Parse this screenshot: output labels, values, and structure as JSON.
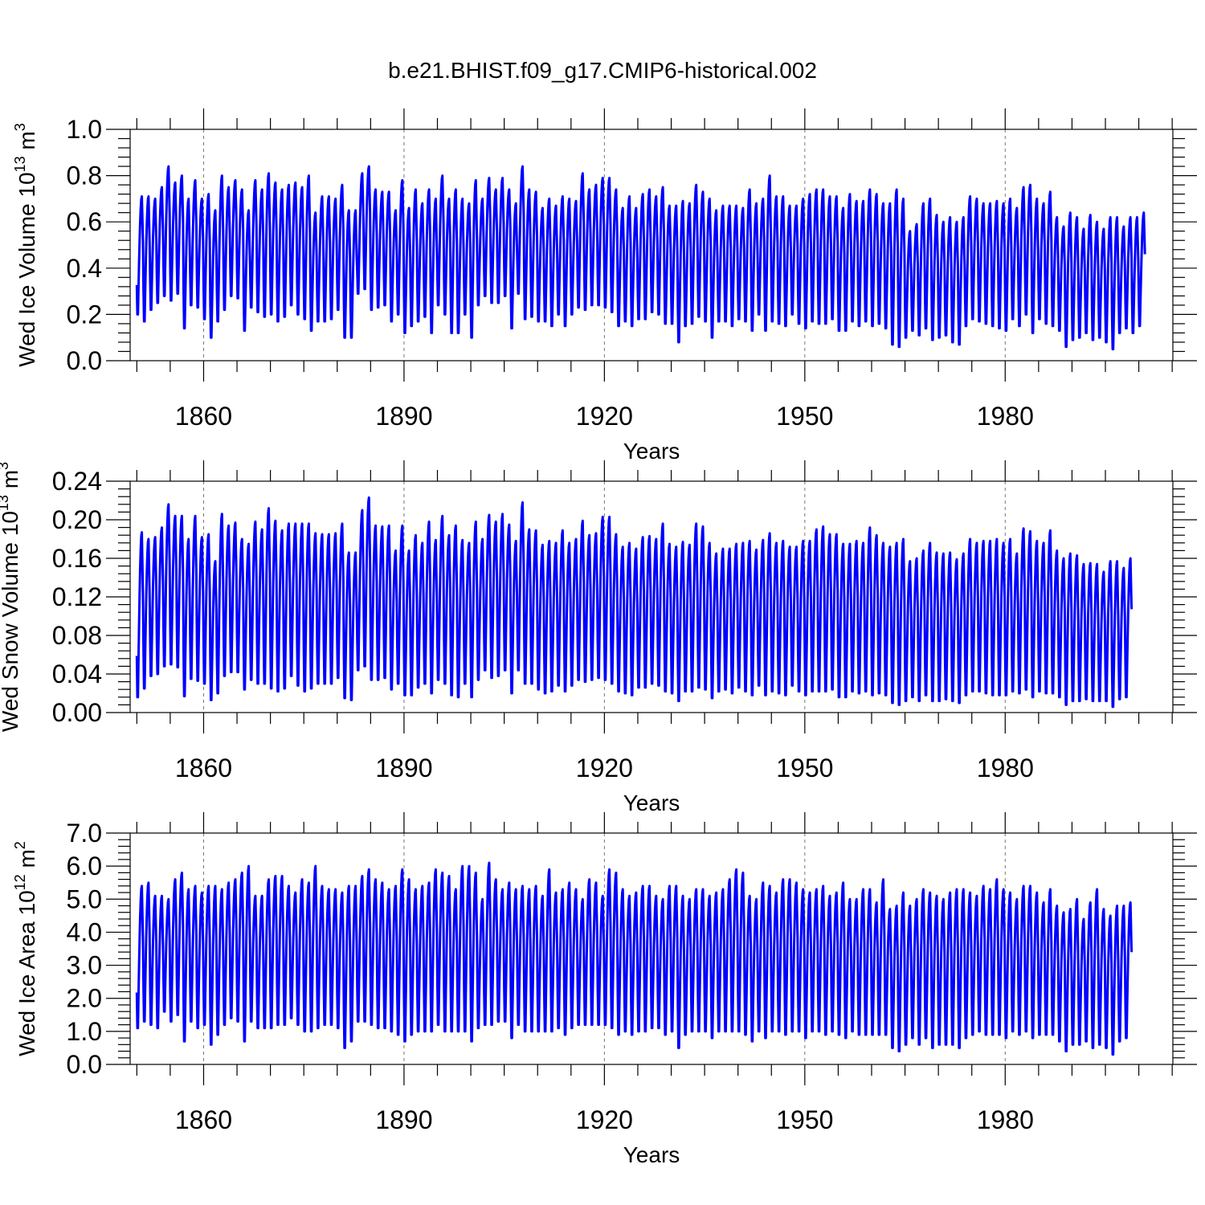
{
  "figure_title": "b.e21.BHIST.f09_g17.CMIP6-historical.002",
  "colors": {
    "series": "#0000ff",
    "axes": "#000000",
    "gridline": "#777777"
  },
  "chart_data": [
    {
      "type": "line",
      "ylabel_main": "Wed Ice Volume 10",
      "ylabel_exp": "13",
      "ylabel_unit": " m",
      "ylabel_unit_exp": "3",
      "xlabel": "Years",
      "xlim": [
        1849,
        2005.1
      ],
      "ylim": [
        0.0,
        1.0
      ],
      "x_ticks": [
        1860,
        1890,
        1920,
        1950,
        1980
      ],
      "x_tick_labels": [
        "1860",
        "1890",
        "1920",
        "1950",
        "1980"
      ],
      "y_ticks": [
        0.0,
        0.2,
        0.4,
        0.6,
        0.8,
        1.0
      ],
      "y_tick_labels": [
        "0.0",
        "0.2",
        "0.4",
        "0.6",
        "0.8",
        "1.0"
      ],
      "series": [
        {
          "color": "#0000ff",
          "x_start": 1850.0,
          "seasonal": true,
          "annual_max": [
            0.71,
            0.71,
            0.7,
            0.75,
            0.84,
            0.77,
            0.8,
            0.7,
            0.78,
            0.7,
            0.72,
            0.65,
            0.8,
            0.75,
            0.78,
            0.74,
            0.65,
            0.78,
            0.74,
            0.81,
            0.77,
            0.74,
            0.76,
            0.77,
            0.75,
            0.8,
            0.64,
            0.71,
            0.71,
            0.7,
            0.76,
            0.65,
            0.65,
            0.81,
            0.84,
            0.74,
            0.73,
            0.73,
            0.65,
            0.78,
            0.66,
            0.74,
            0.68,
            0.74,
            0.7,
            0.8,
            0.7,
            0.74,
            0.7,
            0.68,
            0.78,
            0.7,
            0.79,
            0.74,
            0.79,
            0.74,
            0.68,
            0.84,
            0.74,
            0.73,
            0.66,
            0.7,
            0.67,
            0.71,
            0.7,
            0.69,
            0.81,
            0.74,
            0.76,
            0.79,
            0.79,
            0.74,
            0.66,
            0.71,
            0.66,
            0.72,
            0.74,
            0.71,
            0.75,
            0.67,
            0.67,
            0.69,
            0.68,
            0.76,
            0.73,
            0.7,
            0.65,
            0.67,
            0.67,
            0.67,
            0.66,
            0.74,
            0.68,
            0.7,
            0.8,
            0.71,
            0.71,
            0.67,
            0.67,
            0.7,
            0.72,
            0.74,
            0.74,
            0.71,
            0.71,
            0.66,
            0.72,
            0.69,
            0.69,
            0.74,
            0.72,
            0.68,
            0.68,
            0.74,
            0.7,
            0.56,
            0.59,
            0.68,
            0.7,
            0.63,
            0.6,
            0.62,
            0.6,
            0.62,
            0.71,
            0.7,
            0.68,
            0.68,
            0.69,
            0.68,
            0.7,
            0.66,
            0.75,
            0.76,
            0.7,
            0.68,
            0.73,
            0.62,
            0.58,
            0.64,
            0.62,
            0.57,
            0.63,
            0.6,
            0.57,
            0.62,
            0.62,
            0.58,
            0.62,
            0.62,
            0.64
          ],
          "annual_min": [
            0.2,
            0.17,
            0.22,
            0.25,
            0.28,
            0.26,
            0.29,
            0.14,
            0.24,
            0.23,
            0.18,
            0.1,
            0.17,
            0.22,
            0.28,
            0.27,
            0.13,
            0.23,
            0.21,
            0.19,
            0.2,
            0.17,
            0.19,
            0.24,
            0.2,
            0.18,
            0.13,
            0.17,
            0.17,
            0.18,
            0.22,
            0.1,
            0.1,
            0.29,
            0.31,
            0.22,
            0.23,
            0.24,
            0.17,
            0.2,
            0.12,
            0.15,
            0.17,
            0.19,
            0.12,
            0.24,
            0.2,
            0.12,
            0.12,
            0.2,
            0.1,
            0.24,
            0.28,
            0.25,
            0.25,
            0.28,
            0.14,
            0.29,
            0.18,
            0.19,
            0.17,
            0.17,
            0.15,
            0.2,
            0.15,
            0.2,
            0.23,
            0.22,
            0.24,
            0.24,
            0.23,
            0.21,
            0.15,
            0.17,
            0.15,
            0.18,
            0.18,
            0.21,
            0.2,
            0.16,
            0.16,
            0.08,
            0.15,
            0.16,
            0.19,
            0.17,
            0.1,
            0.17,
            0.17,
            0.15,
            0.18,
            0.17,
            0.13,
            0.2,
            0.13,
            0.17,
            0.16,
            0.15,
            0.2,
            0.16,
            0.14,
            0.17,
            0.16,
            0.16,
            0.18,
            0.13,
            0.13,
            0.17,
            0.15,
            0.17,
            0.15,
            0.16,
            0.14,
            0.07,
            0.06,
            0.1,
            0.13,
            0.11,
            0.14,
            0.09,
            0.1,
            0.11,
            0.08,
            0.07,
            0.15,
            0.18,
            0.17,
            0.16,
            0.15,
            0.14,
            0.13,
            0.18,
            0.15,
            0.2,
            0.12,
            0.18,
            0.16,
            0.15,
            0.13,
            0.06,
            0.09,
            0.1,
            0.12,
            0.09,
            0.1,
            0.08,
            0.05,
            0.12,
            0.14,
            0.12,
            0.15
          ]
        }
      ]
    },
    {
      "type": "line",
      "ylabel_main": "Wed Snow Volume 10",
      "ylabel_exp": "13",
      "ylabel_unit": " m",
      "ylabel_unit_exp": "3",
      "xlabel": "Years",
      "xlim": [
        1849,
        2005.1
      ],
      "ylim": [
        0.0,
        0.24
      ],
      "x_ticks": [
        1860,
        1890,
        1920,
        1950,
        1980
      ],
      "x_tick_labels": [
        "1860",
        "1890",
        "1920",
        "1950",
        "1980"
      ],
      "y_ticks": [
        0.0,
        0.04,
        0.08,
        0.12,
        0.16,
        0.2,
        0.24
      ],
      "y_tick_labels": [
        "0.00",
        "0.04",
        "0.08",
        "0.12",
        "0.16",
        "0.20",
        "0.24"
      ],
      "series": [
        {
          "color": "#0000ff",
          "x_start": 1850.0,
          "seasonal": true,
          "annual_max": [
            0.187,
            0.18,
            0.182,
            0.192,
            0.216,
            0.204,
            0.204,
            0.18,
            0.204,
            0.182,
            0.185,
            0.157,
            0.206,
            0.194,
            0.197,
            0.18,
            0.175,
            0.198,
            0.19,
            0.212,
            0.199,
            0.189,
            0.196,
            0.196,
            0.196,
            0.196,
            0.186,
            0.185,
            0.185,
            0.186,
            0.196,
            0.166,
            0.166,
            0.21,
            0.223,
            0.194,
            0.193,
            0.194,
            0.168,
            0.194,
            0.168,
            0.184,
            0.176,
            0.198,
            0.179,
            0.204,
            0.184,
            0.194,
            0.179,
            0.176,
            0.198,
            0.18,
            0.205,
            0.198,
            0.206,
            0.195,
            0.178,
            0.218,
            0.19,
            0.189,
            0.174,
            0.178,
            0.176,
            0.189,
            0.176,
            0.18,
            0.199,
            0.184,
            0.186,
            0.203,
            0.203,
            0.185,
            0.172,
            0.176,
            0.17,
            0.182,
            0.183,
            0.18,
            0.196,
            0.175,
            0.172,
            0.177,
            0.174,
            0.196,
            0.193,
            0.176,
            0.165,
            0.17,
            0.17,
            0.175,
            0.176,
            0.178,
            0.169,
            0.179,
            0.186,
            0.176,
            0.178,
            0.172,
            0.172,
            0.178,
            0.178,
            0.19,
            0.193,
            0.185,
            0.185,
            0.175,
            0.175,
            0.178,
            0.176,
            0.192,
            0.184,
            0.176,
            0.172,
            0.176,
            0.18,
            0.157,
            0.16,
            0.168,
            0.176,
            0.166,
            0.165,
            0.166,
            0.159,
            0.165,
            0.18,
            0.176,
            0.178,
            0.178,
            0.18,
            0.176,
            0.18,
            0.165,
            0.191,
            0.188,
            0.178,
            0.176,
            0.189,
            0.168,
            0.16,
            0.165,
            0.163,
            0.154,
            0.155,
            0.154,
            0.146,
            0.157,
            0.157,
            0.15,
            0.16
          ],
          "annual_min": [
            0.016,
            0.025,
            0.038,
            0.04,
            0.048,
            0.05,
            0.047,
            0.017,
            0.035,
            0.033,
            0.03,
            0.013,
            0.02,
            0.038,
            0.042,
            0.042,
            0.024,
            0.034,
            0.03,
            0.03,
            0.025,
            0.022,
            0.025,
            0.038,
            0.028,
            0.022,
            0.025,
            0.03,
            0.03,
            0.03,
            0.036,
            0.015,
            0.013,
            0.044,
            0.048,
            0.034,
            0.034,
            0.036,
            0.024,
            0.03,
            0.018,
            0.018,
            0.026,
            0.03,
            0.02,
            0.034,
            0.03,
            0.018,
            0.016,
            0.03,
            0.016,
            0.034,
            0.044,
            0.036,
            0.038,
            0.044,
            0.02,
            0.044,
            0.03,
            0.03,
            0.024,
            0.02,
            0.022,
            0.028,
            0.022,
            0.028,
            0.034,
            0.032,
            0.034,
            0.036,
            0.034,
            0.03,
            0.022,
            0.02,
            0.018,
            0.026,
            0.026,
            0.03,
            0.028,
            0.022,
            0.02,
            0.012,
            0.022,
            0.022,
            0.026,
            0.024,
            0.015,
            0.022,
            0.024,
            0.02,
            0.026,
            0.022,
            0.018,
            0.028,
            0.018,
            0.022,
            0.02,
            0.018,
            0.028,
            0.022,
            0.018,
            0.022,
            0.022,
            0.022,
            0.024,
            0.016,
            0.016,
            0.022,
            0.02,
            0.022,
            0.018,
            0.02,
            0.018,
            0.01,
            0.008,
            0.012,
            0.016,
            0.012,
            0.018,
            0.012,
            0.012,
            0.014,
            0.012,
            0.01,
            0.018,
            0.022,
            0.022,
            0.02,
            0.018,
            0.018,
            0.018,
            0.022,
            0.02,
            0.024,
            0.016,
            0.022,
            0.02,
            0.02,
            0.016,
            0.008,
            0.012,
            0.012,
            0.014,
            0.012,
            0.012,
            0.012,
            0.006,
            0.014,
            0.016,
            0.014,
            0.018
          ]
        }
      ]
    },
    {
      "type": "line",
      "ylabel_main": "Wed Ice Area 10",
      "ylabel_exp": "12",
      "ylabel_unit": " m",
      "ylabel_unit_exp": "2",
      "xlabel": "Years",
      "xlim": [
        1849,
        2005.1
      ],
      "ylim": [
        0.0,
        7.0
      ],
      "x_ticks": [
        1860,
        1890,
        1920,
        1950,
        1980
      ],
      "x_tick_labels": [
        "1860",
        "1890",
        "1920",
        "1950",
        "1980"
      ],
      "y_ticks": [
        0.0,
        1.0,
        2.0,
        3.0,
        4.0,
        5.0,
        6.0,
        7.0
      ],
      "y_tick_labels": [
        "0.0",
        "1.0",
        "2.0",
        "3.0",
        "4.0",
        "5.0",
        "6.0",
        "7.0"
      ],
      "series": [
        {
          "color": "#0000ff",
          "x_start": 1850.0,
          "seasonal": true,
          "annual_max": [
            5.4,
            5.5,
            5.1,
            5.1,
            5.0,
            5.6,
            5.8,
            5.3,
            5.4,
            5.2,
            5.4,
            5.4,
            5.3,
            5.5,
            5.6,
            5.8,
            6.0,
            5.1,
            5.1,
            5.6,
            5.7,
            5.7,
            5.4,
            5.2,
            5.6,
            5.5,
            6.0,
            5.4,
            5.3,
            5.3,
            5.2,
            5.4,
            5.4,
            5.7,
            5.9,
            5.6,
            5.5,
            5.3,
            5.4,
            5.9,
            5.6,
            5.3,
            5.4,
            5.5,
            5.9,
            5.8,
            5.7,
            5.3,
            6.0,
            6.0,
            5.8,
            5.0,
            6.1,
            5.6,
            5.3,
            5.5,
            5.3,
            5.4,
            5.3,
            5.4,
            5.1,
            5.9,
            5.2,
            5.3,
            5.5,
            5.3,
            5.0,
            5.6,
            5.5,
            5.1,
            5.9,
            5.8,
            5.3,
            5.1,
            5.2,
            5.4,
            5.4,
            5.1,
            5.0,
            5.4,
            5.4,
            5.1,
            5.0,
            5.3,
            5.3,
            5.1,
            5.2,
            5.3,
            5.6,
            5.9,
            5.8,
            5.1,
            5.0,
            5.5,
            5.4,
            5.2,
            5.6,
            5.6,
            5.5,
            5.3,
            5.2,
            5.3,
            5.4,
            5.1,
            5.2,
            5.5,
            5.0,
            5.0,
            5.3,
            5.3,
            4.9,
            5.6,
            4.7,
            4.8,
            5.2,
            4.8,
            5.0,
            5.3,
            5.2,
            5.1,
            5.0,
            5.2,
            5.3,
            5.3,
            5.2,
            5.1,
            5.4,
            5.3,
            5.6,
            5.3,
            5.2,
            5.0,
            5.4,
            5.4,
            5.2,
            4.9,
            5.3,
            4.8,
            4.6,
            4.7,
            5.0,
            4.4,
            4.9,
            5.3,
            4.7,
            4.5,
            4.8,
            4.8,
            4.9
          ],
          "annual_min": [
            1.1,
            1.3,
            1.2,
            1.1,
            1.6,
            1.3,
            1.5,
            0.7,
            1.3,
            1.1,
            1.2,
            0.6,
            0.9,
            1.2,
            1.4,
            1.3,
            0.7,
            1.3,
            1.1,
            1.1,
            1.1,
            1.2,
            1.2,
            1.4,
            1.2,
            1.0,
            1.0,
            1.1,
            1.2,
            1.2,
            1.1,
            0.5,
            0.7,
            1.3,
            1.3,
            1.2,
            1.1,
            1.1,
            1.0,
            0.9,
            0.7,
            0.9,
            1.0,
            1.0,
            1.0,
            1.2,
            1.0,
            1.0,
            1.0,
            1.0,
            0.7,
            1.1,
            1.2,
            1.2,
            1.3,
            1.3,
            0.8,
            1.2,
            1.0,
            1.0,
            1.0,
            1.0,
            1.0,
            1.1,
            0.9,
            1.1,
            1.2,
            1.2,
            1.2,
            1.2,
            1.2,
            1.1,
            0.9,
            1.0,
            0.9,
            1.0,
            1.0,
            1.1,
            1.1,
            0.9,
            1.0,
            0.5,
            0.9,
            1.0,
            1.0,
            1.0,
            0.8,
            1.0,
            1.0,
            1.0,
            1.0,
            0.9,
            0.7,
            1.0,
            0.8,
            1.0,
            1.0,
            0.9,
            1.0,
            1.0,
            0.8,
            1.0,
            1.0,
            0.9,
            1.0,
            0.9,
            0.8,
            1.0,
            0.9,
            0.9,
            0.9,
            0.9,
            0.9,
            0.5,
            0.4,
            0.6,
            0.8,
            0.6,
            0.8,
            0.5,
            0.6,
            0.6,
            0.6,
            0.5,
            0.8,
            0.9,
            1.0,
            0.9,
            0.9,
            0.9,
            0.8,
            1.0,
            0.9,
            1.0,
            0.8,
            0.9,
            0.9,
            0.9,
            0.7,
            0.4,
            0.6,
            0.6,
            0.7,
            0.5,
            0.6,
            0.5,
            0.3,
            0.7,
            0.8,
            0.8,
            0.9
          ]
        }
      ]
    }
  ]
}
